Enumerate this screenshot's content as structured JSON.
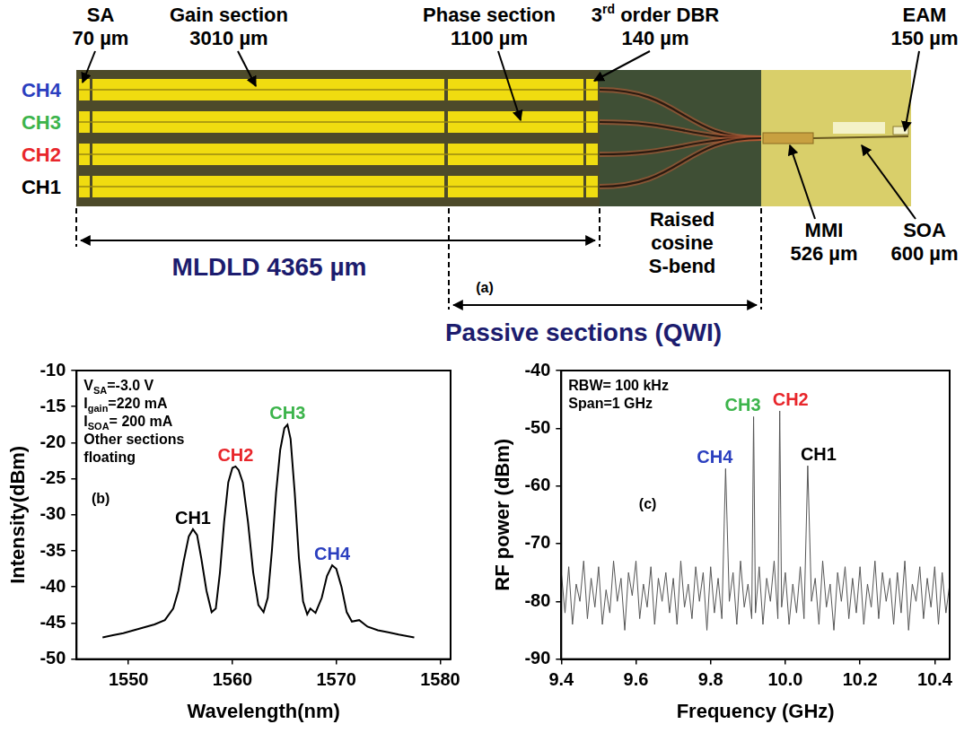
{
  "diagram": {
    "panel_label": "(a)",
    "channels": [
      {
        "label": "CH4",
        "color": "#2b3fbf"
      },
      {
        "label": "CH3",
        "color": "#3cb44b"
      },
      {
        "label": "CH2",
        "color": "#e8262b"
      },
      {
        "label": "CH1",
        "color": "#000000"
      }
    ],
    "sa": {
      "name": "SA",
      "length": "70 µm"
    },
    "gain": {
      "name": "Gain section",
      "length": "3010 µm"
    },
    "phase": {
      "name": "Phase section",
      "length": "1100 µm"
    },
    "dbr": {
      "name": "3rd order DBR",
      "length": "140 µm"
    },
    "eam": {
      "name": "EAM",
      "length": "150 µm"
    },
    "mmi": {
      "name": "MMI",
      "length": "526 µm"
    },
    "soa": {
      "name": "SOA",
      "length": "600 µm"
    },
    "s_bend": "Raised cosine S-bend",
    "mldld": "MLDLD 4365 µm",
    "passive": "Passive sections (QWI)"
  },
  "chart_data": [
    {
      "type": "line",
      "panel_label": "(b)",
      "x_label": "Wavelength(nm)",
      "y_label": "Intensity(dBm)",
      "xlim": [
        1545,
        1581
      ],
      "xticks": [
        1550,
        1560,
        1570,
        1580
      ],
      "ylim": [
        -50,
        -10
      ],
      "yticks": [
        -50,
        -45,
        -40,
        -35,
        -30,
        -25,
        -20,
        -15,
        -10
      ],
      "grid": false,
      "color": "#000000",
      "annotations": [
        [
          "V",
          "SA",
          "=-3.0 V"
        ],
        [
          "I",
          "gain",
          "=220 mA"
        ],
        [
          "I",
          "SOA",
          "= 200 mA"
        ],
        [
          "Other sections"
        ],
        [
          "floating"
        ]
      ],
      "peak_labels": [
        {
          "text": "CH1",
          "color": "#000000"
        },
        {
          "text": "CH2",
          "color": "#e8262b"
        },
        {
          "text": "CH3",
          "color": "#3cb44b"
        },
        {
          "text": "CH4",
          "color": "#2b3fbf"
        }
      ],
      "x": [
        1547.5,
        1548.5,
        1549.5,
        1550.5,
        1551.5,
        1552.5,
        1553.5,
        1554.3,
        1554.8,
        1555.3,
        1555.8,
        1556.2,
        1556.6,
        1557.0,
        1557.5,
        1558.0,
        1558.4,
        1558.8,
        1559.2,
        1559.6,
        1560.0,
        1560.3,
        1560.6,
        1561.0,
        1561.5,
        1562.0,
        1562.5,
        1563.0,
        1563.4,
        1563.8,
        1564.2,
        1564.6,
        1565.0,
        1565.3,
        1565.6,
        1566.0,
        1566.4,
        1566.8,
        1567.2,
        1567.5,
        1568.0,
        1568.6,
        1569.1,
        1569.6,
        1570.0,
        1570.5,
        1571.0,
        1571.5,
        1572.2,
        1573.0,
        1574.0,
        1575.0,
        1576.0,
        1577.5
      ],
      "values": [
        -47.0,
        -46.7,
        -46.4,
        -46.0,
        -45.6,
        -45.2,
        -44.6,
        -43.0,
        -40.5,
        -36.5,
        -33.0,
        -32.0,
        -32.8,
        -36.0,
        -40.5,
        -43.5,
        -43.0,
        -38.0,
        -31.0,
        -25.5,
        -23.5,
        -23.3,
        -23.8,
        -25.5,
        -31.0,
        -38.0,
        -42.5,
        -43.5,
        -41.5,
        -35.0,
        -27.0,
        -21.0,
        -18.0,
        -17.5,
        -19.5,
        -27.0,
        -36.0,
        -42.0,
        -43.8,
        -43.0,
        -43.6,
        -41.5,
        -38.5,
        -37.0,
        -37.5,
        -40.0,
        -43.5,
        -44.8,
        -44.6,
        -45.5,
        -46.0,
        -46.3,
        -46.6,
        -47.0
      ]
    },
    {
      "type": "line",
      "panel_label": "(c)",
      "x_label": "Frequency (GHz)",
      "y_label": "RF power (dBm)",
      "xlim": [
        9.4,
        10.44
      ],
      "xticks": [
        9.4,
        9.6,
        9.8,
        {
          "value": 10,
          "label": "10.0"
        },
        10.2,
        10.4
      ],
      "ylim": [
        -90,
        -40
      ],
      "yticks": [
        -90,
        -80,
        -70,
        -60,
        -50,
        -40
      ],
      "grid": false,
      "color": "#555555",
      "annotations": [
        [
          "RBW= 100 kHz"
        ],
        [
          "Span=1 GHz"
        ]
      ],
      "peak_labels": [
        {
          "text": "CH4",
          "color": "#2b3fbf"
        },
        {
          "text": "CH3",
          "color": "#3cb44b"
        },
        {
          "text": "CH2",
          "color": "#e8262b"
        },
        {
          "text": "CH1",
          "color": "#000000"
        }
      ],
      "x": [
        9.4,
        9.41,
        9.42,
        9.43,
        9.44,
        9.45,
        9.46,
        9.47,
        9.48,
        9.49,
        9.5,
        9.51,
        9.52,
        9.53,
        9.54,
        9.55,
        9.56,
        9.57,
        9.58,
        9.59,
        9.6,
        9.61,
        9.62,
        9.63,
        9.64,
        9.65,
        9.66,
        9.67,
        9.68,
        9.69,
        9.7,
        9.71,
        9.72,
        9.73,
        9.74,
        9.75,
        9.76,
        9.77,
        9.78,
        9.79,
        9.8,
        9.81,
        9.82,
        9.83,
        9.84,
        9.85,
        9.86,
        9.87,
        9.88,
        9.89,
        9.9,
        9.91,
        9.915,
        9.92,
        9.93,
        9.94,
        9.95,
        9.96,
        9.97,
        9.98,
        9.985,
        9.99,
        10.0,
        10.01,
        10.02,
        10.03,
        10.04,
        10.05,
        10.06,
        10.07,
        10.08,
        10.09,
        10.1,
        10.11,
        10.12,
        10.13,
        10.14,
        10.15,
        10.16,
        10.17,
        10.18,
        10.19,
        10.2,
        10.21,
        10.22,
        10.23,
        10.24,
        10.25,
        10.26,
        10.27,
        10.28,
        10.29,
        10.3,
        10.31,
        10.32,
        10.33,
        10.34,
        10.35,
        10.36,
        10.37,
        10.38,
        10.39,
        10.4,
        10.41,
        10.42,
        10.43,
        10.44
      ],
      "values": [
        -75,
        -82,
        -74,
        -84,
        -77,
        -80,
        -73,
        -83,
        -76,
        -81,
        -74,
        -84,
        -78,
        -82,
        -73,
        -80,
        -76,
        -85,
        -75,
        -79,
        -73,
        -83,
        -77,
        -81,
        -74,
        -84,
        -76,
        -80,
        -75,
        -82,
        -76,
        -84,
        -73,
        -81,
        -77,
        -83,
        -74,
        -80,
        -75,
        -85,
        -74,
        -82,
        -76,
        -83,
        -57,
        -80,
        -75,
        -84,
        -73,
        -81,
        -77,
        -83,
        -48,
        -82,
        -74,
        -84,
        -76,
        -80,
        -73,
        -83,
        -47,
        -81,
        -75,
        -84,
        -77,
        -82,
        -74,
        -83,
        -56.5,
        -80,
        -76,
        -84,
        -73,
        -81,
        -77,
        -85,
        -75,
        -80,
        -74,
        -83,
        -76,
        -82,
        -74,
        -84,
        -77,
        -81,
        -73,
        -83,
        -75,
        -80,
        -76,
        -84,
        -75,
        -82,
        -73,
        -85,
        -77,
        -80,
        -74,
        -83,
        -76,
        -81,
        -74,
        -84,
        -75,
        -82,
        -77
      ]
    }
  ]
}
